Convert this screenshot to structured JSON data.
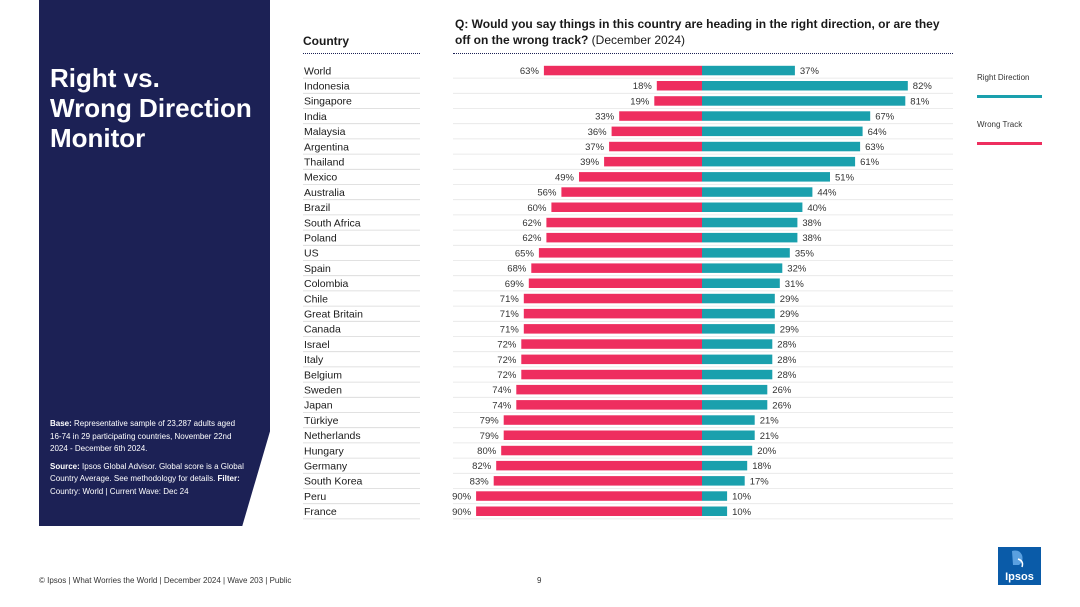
{
  "sidebar": {
    "title": "Right vs.\nWrong Direction\nMonitor",
    "base_label": "Base:",
    "base_text": "Representative sample of 23,287 adults aged 16-74 in 29 participating countries, November 22nd 2024 - December 6th 2024.",
    "source_label": "Source:",
    "source_text": "Ipsos Global Advisor. Global score is a Global Country Average. See methodology for details.",
    "filter_label": "Filter:",
    "filter_text": "Country: World | Current Wave: Dec 24"
  },
  "header": {
    "country_col": "Country",
    "question_bold": "Q: Would you say things in this country are heading in the right direction, or are they off on the wrong track?",
    "question_suffix": " (December 2024)"
  },
  "legend": {
    "right": "Right Direction",
    "wrong": "Wrong Track"
  },
  "colors": {
    "right": "#1aa0ad",
    "wrong": "#ee2e5f",
    "panel": "#1c2155"
  },
  "footer": {
    "text": "© Ipsos | What Worries the World | December 2024 | Wave 203 | Public",
    "page": "9",
    "logo": "Ipsos"
  },
  "chart_data": {
    "type": "bar",
    "orientation": "horizontal-diverging",
    "title": "Q: Would you say things in this country are heading in the right direction, or are they off on the wrong track? (December 2024)",
    "categories": [
      "World",
      "Indonesia",
      "Singapore",
      "India",
      "Malaysia",
      "Argentina",
      "Thailand",
      "Mexico",
      "Australia",
      "Brazil",
      "South Africa",
      "Poland",
      "US",
      "Spain",
      "Colombia",
      "Chile",
      "Great Britain",
      "Canada",
      "Israel",
      "Italy",
      "Belgium",
      "Sweden",
      "Japan",
      "Türkiye",
      "Netherlands",
      "Hungary",
      "Germany",
      "South Korea",
      "Peru",
      "France"
    ],
    "series": [
      {
        "name": "Wrong Track",
        "values": [
          63,
          18,
          19,
          33,
          36,
          37,
          39,
          49,
          56,
          60,
          62,
          62,
          65,
          68,
          69,
          71,
          71,
          71,
          72,
          72,
          72,
          74,
          74,
          79,
          79,
          80,
          82,
          83,
          90,
          90
        ]
      },
      {
        "name": "Right Direction",
        "values": [
          37,
          82,
          81,
          67,
          64,
          63,
          61,
          51,
          44,
          40,
          38,
          38,
          35,
          32,
          31,
          29,
          29,
          29,
          28,
          28,
          28,
          26,
          26,
          21,
          21,
          20,
          18,
          17,
          10,
          10
        ]
      }
    ],
    "unit": "%",
    "xlim": [
      0,
      100
    ]
  }
}
